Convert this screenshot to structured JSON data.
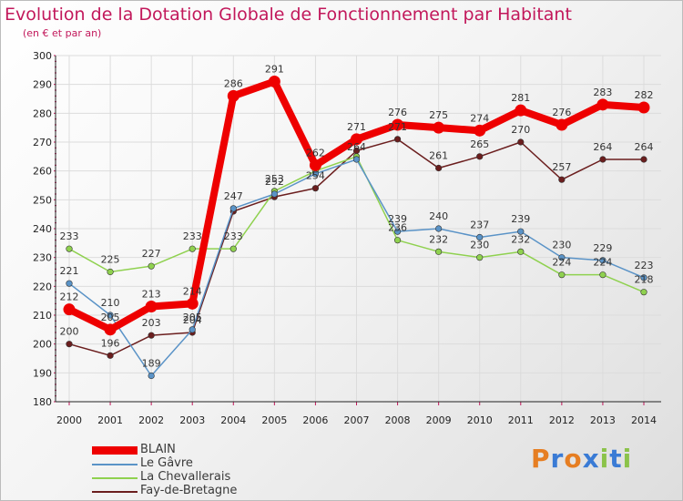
{
  "header": {
    "title": "Evolution de la Dotation Globale de Fonctionnement par Habitant",
    "subtitle": "(en € et par an)"
  },
  "logo": {
    "text": "Proxiti",
    "colors": [
      "#e67e22",
      "#3a7bd5",
      "#e67e22",
      "#3a7bd5",
      "#8bc34a",
      "#3a7bd5",
      "#8bc34a"
    ]
  },
  "chart_data": {
    "type": "line",
    "title": "Evolution de la Dotation Globale de Fonctionnement par Habitant",
    "subtitle": "(en € et par an)",
    "xlabel": "",
    "ylabel": "",
    "ylim": [
      180,
      300
    ],
    "yticks": [
      180,
      190,
      200,
      210,
      220,
      230,
      240,
      250,
      260,
      270,
      280,
      290,
      300
    ],
    "grid": true,
    "categories": [
      "2000",
      "2001",
      "2002",
      "2003",
      "2004",
      "2005",
      "2006",
      "2007",
      "2008",
      "2009",
      "2010",
      "2011",
      "2012",
      "2013",
      "2014"
    ],
    "series": [
      {
        "name": "Fay-de-Bretagne",
        "color": "#6b1e1e",
        "values": [
          200,
          196,
          203,
          204,
          246,
          251,
          254,
          267,
          271,
          261,
          265,
          270,
          257,
          264,
          264
        ],
        "labels": [
          "200",
          "196",
          "203",
          "204",
          "",
          "",
          "254",
          "",
          "271",
          "261",
          "265",
          "270",
          "257",
          "264",
          "264"
        ]
      },
      {
        "name": "La Chevallerais",
        "color": "#8fd14f",
        "values": [
          233,
          225,
          227,
          233,
          233,
          253,
          260,
          265,
          236,
          232,
          230,
          232,
          224,
          224,
          218
        ],
        "labels": [
          "233",
          "225",
          "227",
          "233",
          "233",
          "253",
          "",
          "",
          "236",
          "232",
          "230",
          "232",
          "224",
          "224",
          "218"
        ]
      },
      {
        "name": "Le Gâvre",
        "color": "#5a93c7",
        "values": [
          221,
          210,
          189,
          205,
          247,
          252,
          259,
          264,
          239,
          240,
          237,
          239,
          230,
          229,
          223
        ],
        "labels": [
          "221",
          "210",
          "189",
          "205",
          "247",
          "252",
          "",
          "264",
          "239",
          "240",
          "237",
          "239",
          "230",
          "229",
          "223"
        ]
      },
      {
        "name": "BLAIN",
        "color": "#ee0000",
        "values": [
          212,
          205,
          213,
          214,
          286,
          291,
          262,
          271,
          276,
          275,
          274,
          281,
          276,
          283,
          282
        ],
        "labels": [
          "212",
          "205",
          "213",
          "214",
          "286",
          "291",
          "262",
          "271",
          "276",
          "275",
          "274",
          "281",
          "276",
          "283",
          "282"
        ]
      }
    ],
    "legend": [
      "BLAIN",
      "Le Gâvre",
      "La Chevallerais",
      "Fay-de-Bretagne"
    ],
    "legend_position": "bottom-left"
  }
}
